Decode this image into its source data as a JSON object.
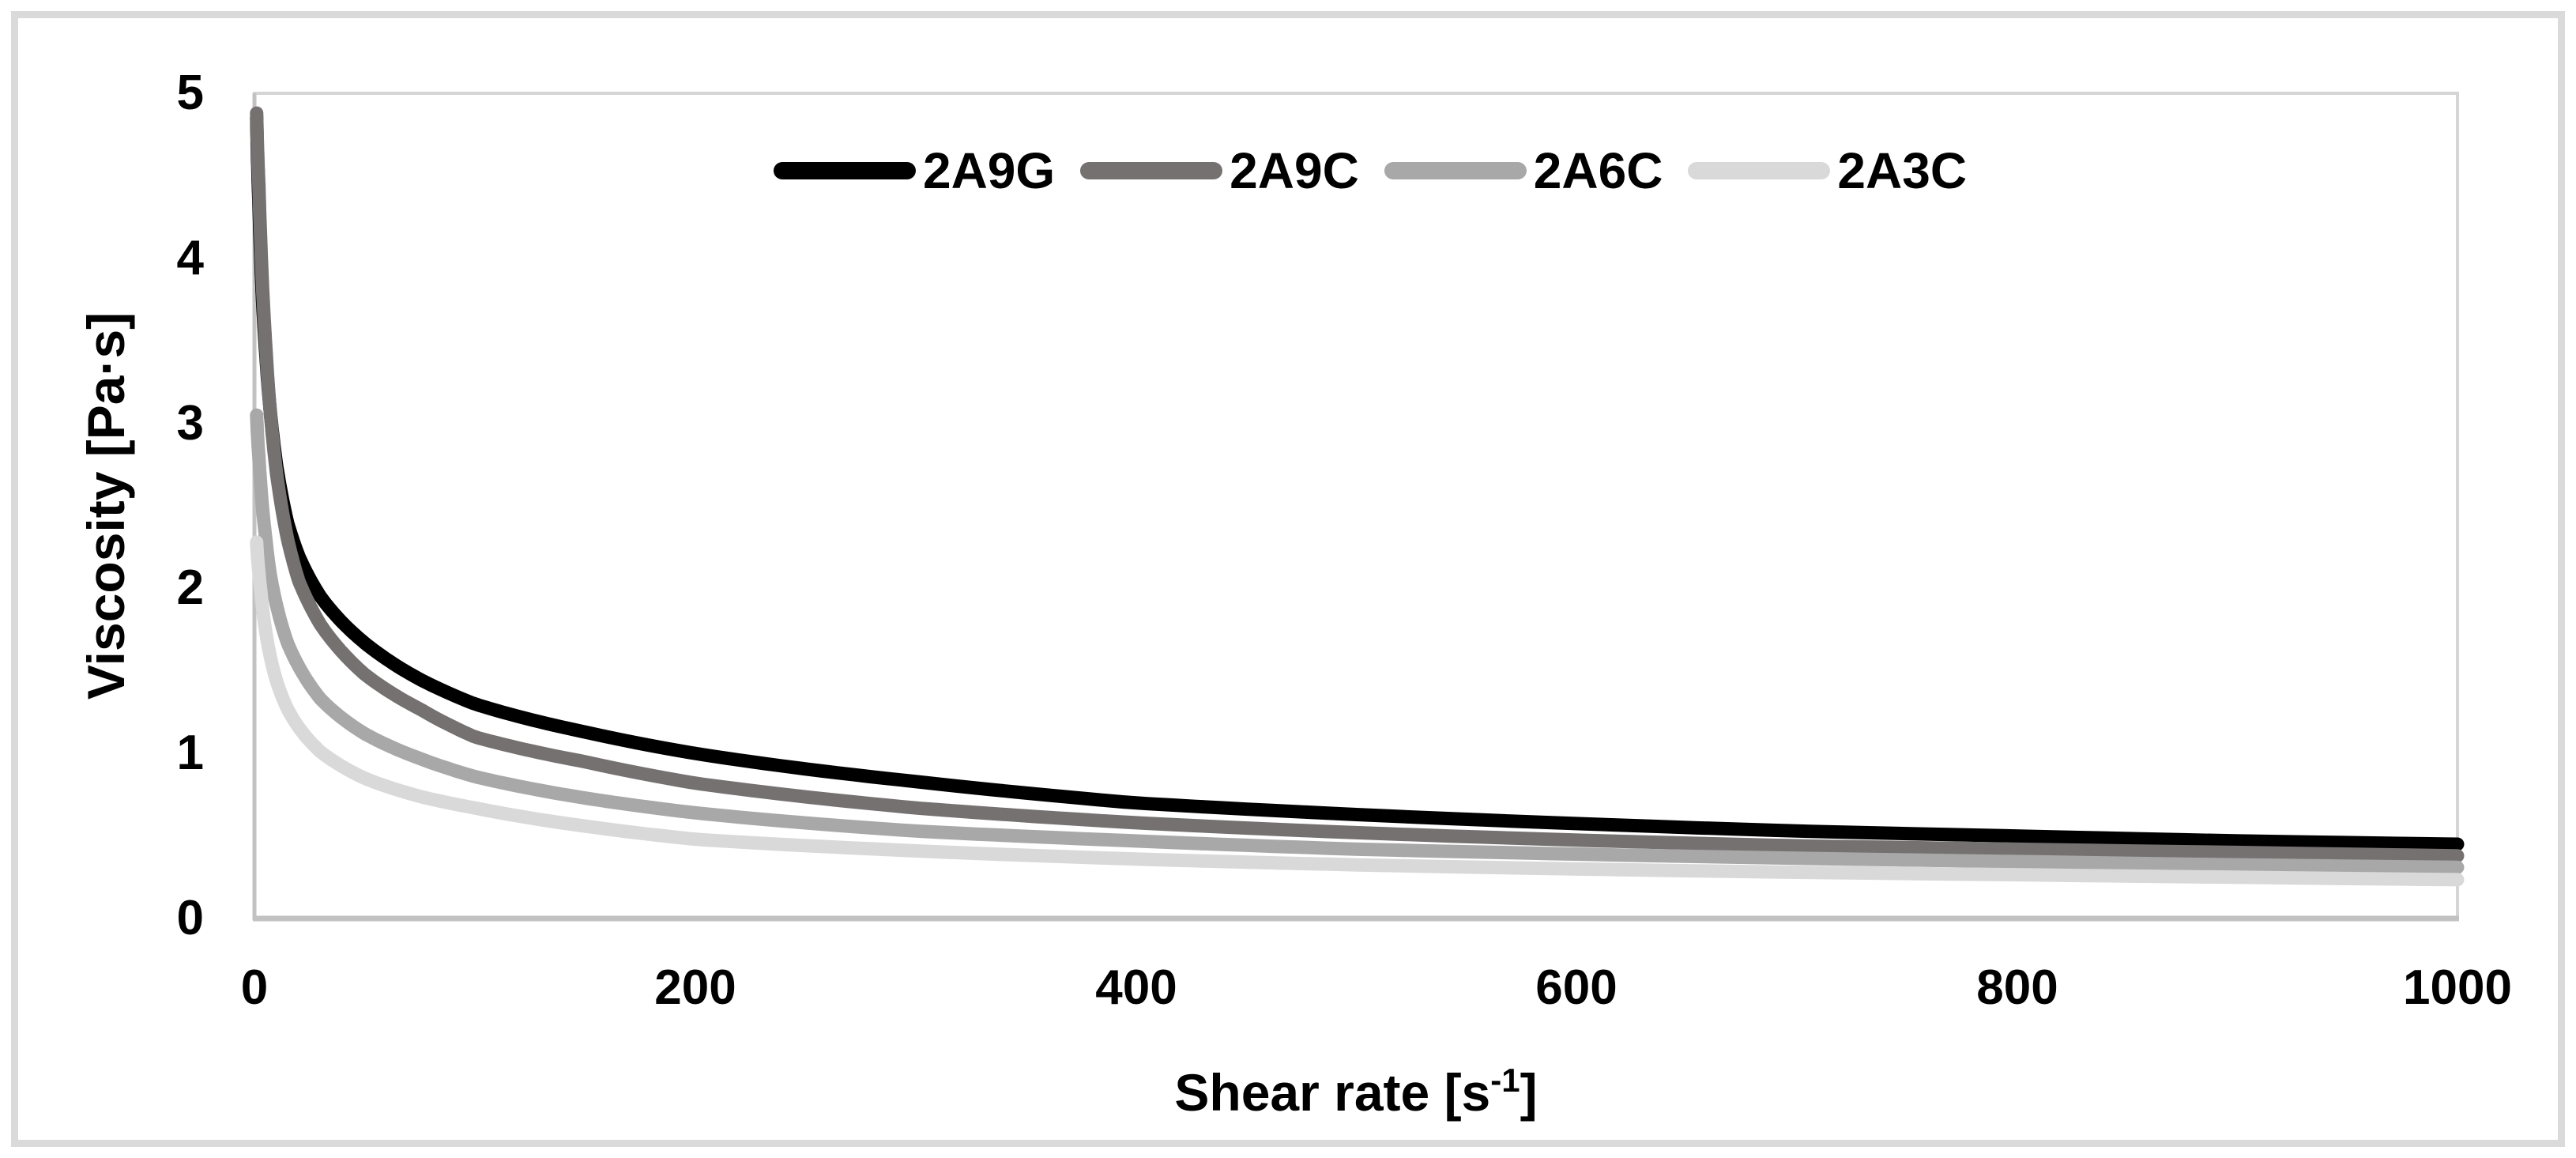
{
  "figure": {
    "background_color": "#FFFFFF",
    "frame_color": "#DADADA"
  },
  "chart_data": {
    "type": "line",
    "title": "",
    "xlabel": "Shear rate [s⁻¹]",
    "xlabel_parts": {
      "main": "Shear rate [s",
      "sup": "-1",
      "end": "]"
    },
    "ylabel": "Viscosity [Pa·s]",
    "xlim": [
      0,
      1000
    ],
    "ylim": [
      0,
      5
    ],
    "xticks": [
      "0",
      "200",
      "400",
      "600",
      "800",
      "1000"
    ],
    "yticks": [
      "0",
      "1",
      "2",
      "3",
      "4",
      "5"
    ],
    "grid": false,
    "legend_position": "top-center",
    "plot_border_color": "#D5D5D5",
    "axis_line_color": "#C2C2C2",
    "x": [
      1,
      2,
      3,
      5,
      7,
      10,
      15,
      20,
      30,
      50,
      75,
      100,
      150,
      200,
      300,
      400,
      500,
      600,
      700,
      800,
      900,
      1000
    ],
    "series": [
      {
        "name": "2A9G",
        "color": "#000000",
        "values": [
          4.85,
          4.35,
          3.95,
          3.45,
          3.1,
          2.75,
          2.4,
          2.2,
          1.95,
          1.67,
          1.45,
          1.3,
          1.13,
          1.0,
          0.83,
          0.7,
          0.63,
          0.575,
          0.53,
          0.5,
          0.47,
          0.45
        ]
      },
      {
        "name": "2A9C",
        "color": "#767171",
        "values": [
          4.88,
          4.45,
          4.05,
          3.5,
          3.1,
          2.7,
          2.3,
          2.05,
          1.78,
          1.48,
          1.27,
          1.1,
          0.95,
          0.82,
          0.67,
          0.58,
          0.52,
          0.475,
          0.44,
          0.42,
          0.4,
          0.38
        ]
      },
      {
        "name": "2A6C",
        "color": "#A8A8A8",
        "values": [
          3.05,
          2.8,
          2.6,
          2.32,
          2.1,
          1.9,
          1.67,
          1.53,
          1.33,
          1.12,
          0.97,
          0.86,
          0.73,
          0.64,
          0.53,
          0.47,
          0.42,
          0.39,
          0.365,
          0.345,
          0.325,
          0.31
        ]
      },
      {
        "name": "2A3C",
        "color": "#D9D9D9",
        "values": [
          2.28,
          2.1,
          1.97,
          1.75,
          1.6,
          1.44,
          1.27,
          1.16,
          1.01,
          0.85,
          0.74,
          0.67,
          0.56,
          0.48,
          0.41,
          0.36,
          0.325,
          0.3,
          0.28,
          0.265,
          0.25,
          0.235
        ]
      }
    ]
  }
}
